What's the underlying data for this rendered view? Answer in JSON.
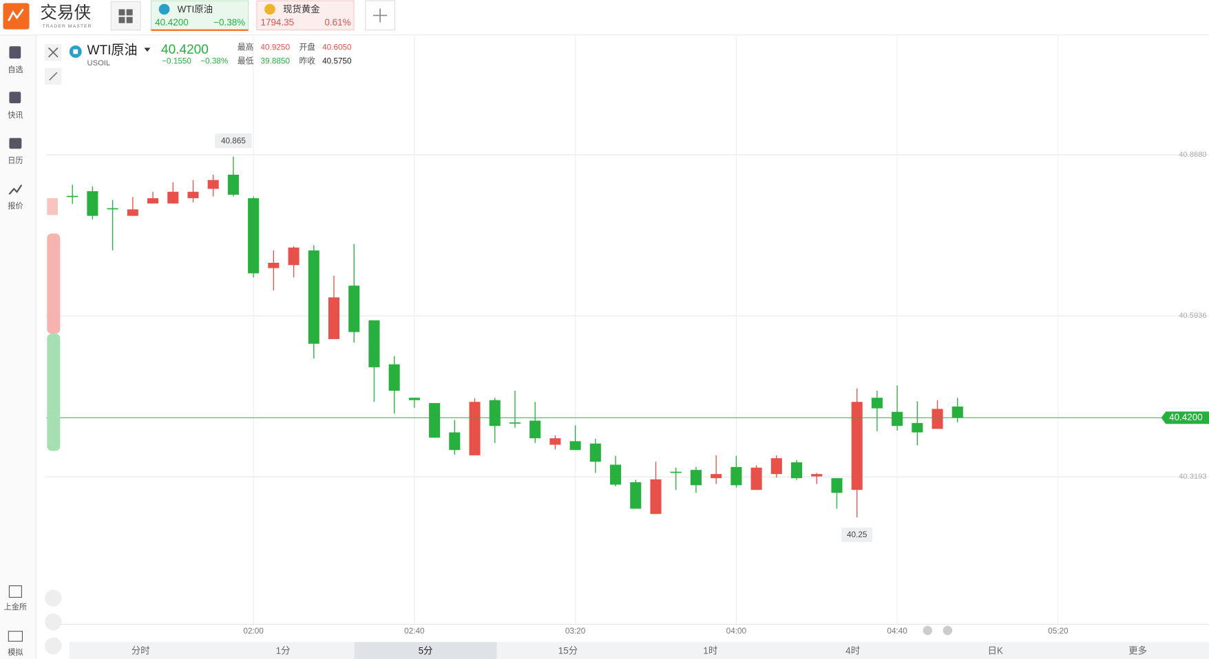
{
  "header": {
    "logo": "交易侠",
    "logo_sub": "TRADER MASTER",
    "tabs": [
      {
        "name": "WTI原油",
        "price": "40.4200",
        "change": "−0.38%"
      },
      {
        "name": "现货黄金",
        "price": "1794.35",
        "change": "0.61%"
      }
    ]
  },
  "sidebar": {
    "top": [
      "自选",
      "快讯",
      "日历",
      "报价"
    ],
    "bottom": [
      "上金所",
      "模拟"
    ]
  },
  "quote": {
    "name": "WTI原油",
    "symbol": "USOIL",
    "price": "40.4200",
    "change": "−0.1550",
    "change_pct": "−0.38%",
    "stats": [
      {
        "label": "最高",
        "value": "40.9250"
      },
      {
        "label": "开盘",
        "value": "40.6050"
      },
      {
        "label": "最低",
        "value": "39.8850"
      },
      {
        "label": "昨收",
        "value": "40.5750"
      }
    ]
  },
  "timeframes": [
    "分时",
    "1分",
    "5分",
    "15分",
    "1时",
    "4时",
    "日K",
    "更多"
  ],
  "chart_data": {
    "type": "candlestick",
    "up_color": "#e8504a",
    "down_color": "#27b03e",
    "categories": [
      null,
      null,
      null,
      null,
      null,
      null,
      null,
      null,
      null,
      null,
      null,
      null,
      null,
      null,
      null,
      null,
      null,
      null,
      null,
      null,
      null,
      null,
      null,
      null,
      null,
      null,
      null,
      null,
      null,
      null,
      null,
      null,
      null,
      null,
      null,
      null,
      null,
      null,
      null,
      null,
      null,
      null,
      null,
      null,
      null
    ],
    "open": [
      40.798,
      40.806,
      40.777,
      40.764,
      40.785,
      40.785,
      40.794,
      40.81,
      40.834,
      40.794,
      40.675,
      40.68,
      40.705,
      40.554,
      40.645,
      40.586,
      40.511,
      40.454,
      40.445,
      40.395,
      40.356,
      40.45,
      40.412,
      40.415,
      40.374,
      40.38,
      40.376,
      40.34,
      40.31,
      40.256,
      40.328,
      40.331,
      40.317,
      40.336,
      40.297,
      40.324,
      40.344,
      40.32,
      40.317,
      40.297,
      40.454,
      40.43,
      40.411,
      40.401,
      40.439
    ],
    "high": [
      40.817,
      40.814,
      40.791,
      40.796,
      40.805,
      40.821,
      40.825,
      40.834,
      40.865,
      40.797,
      40.705,
      40.712,
      40.714,
      40.662,
      40.716,
      40.586,
      40.525,
      40.454,
      40.445,
      40.416,
      40.453,
      40.454,
      40.466,
      40.447,
      40.39,
      40.407,
      40.384,
      40.355,
      40.314,
      40.345,
      40.335,
      40.336,
      40.356,
      40.355,
      40.339,
      40.356,
      40.348,
      40.326,
      40.317,
      40.47,
      40.466,
      40.475,
      40.448,
      40.45,
      40.454
    ],
    "low": [
      40.784,
      40.758,
      40.705,
      40.764,
      40.785,
      40.785,
      40.787,
      40.797,
      40.797,
      40.659,
      40.637,
      40.659,
      40.521,
      40.554,
      40.548,
      40.447,
      40.427,
      40.437,
      40.386,
      40.357,
      40.356,
      40.377,
      40.403,
      40.377,
      40.366,
      40.365,
      40.326,
      40.303,
      40.265,
      40.256,
      40.297,
      40.292,
      40.307,
      40.301,
      40.297,
      40.318,
      40.314,
      40.307,
      40.265,
      40.25,
      40.397,
      40.398,
      40.373,
      40.401,
      40.412
    ],
    "close": [
      40.796,
      40.764,
      40.775,
      40.775,
      40.794,
      40.805,
      40.805,
      40.825,
      40.8,
      40.666,
      40.684,
      40.71,
      40.546,
      40.625,
      40.566,
      40.506,
      40.466,
      40.45,
      40.386,
      40.365,
      40.447,
      40.406,
      40.41,
      40.385,
      40.385,
      40.365,
      40.345,
      40.306,
      40.265,
      40.315,
      40.326,
      40.305,
      40.324,
      40.305,
      40.335,
      40.351,
      40.317,
      40.324,
      40.292,
      40.447,
      40.436,
      40.406,
      40.395,
      40.435,
      40.42
    ],
    "last_value_label": "40.4200",
    "ylim": [
      40.068,
      41.07
    ],
    "yticks": [
      {
        "value": 40.868,
        "label": "40.8680"
      },
      40.5936,
      40.3193
    ],
    "xlim": [
      -1.3,
      56.5
    ],
    "xticks": [
      {
        "value": 9,
        "label": "02:00"
      },
      {
        "value": 17,
        "label": "02:40"
      },
      {
        "value": 25,
        "label": "03:20"
      },
      {
        "value": 33,
        "label": "04:00"
      },
      {
        "value": 41,
        "label": "04:40"
      },
      {
        "value": 49,
        "label": "05:20"
      }
    ],
    "grid": true
  }
}
